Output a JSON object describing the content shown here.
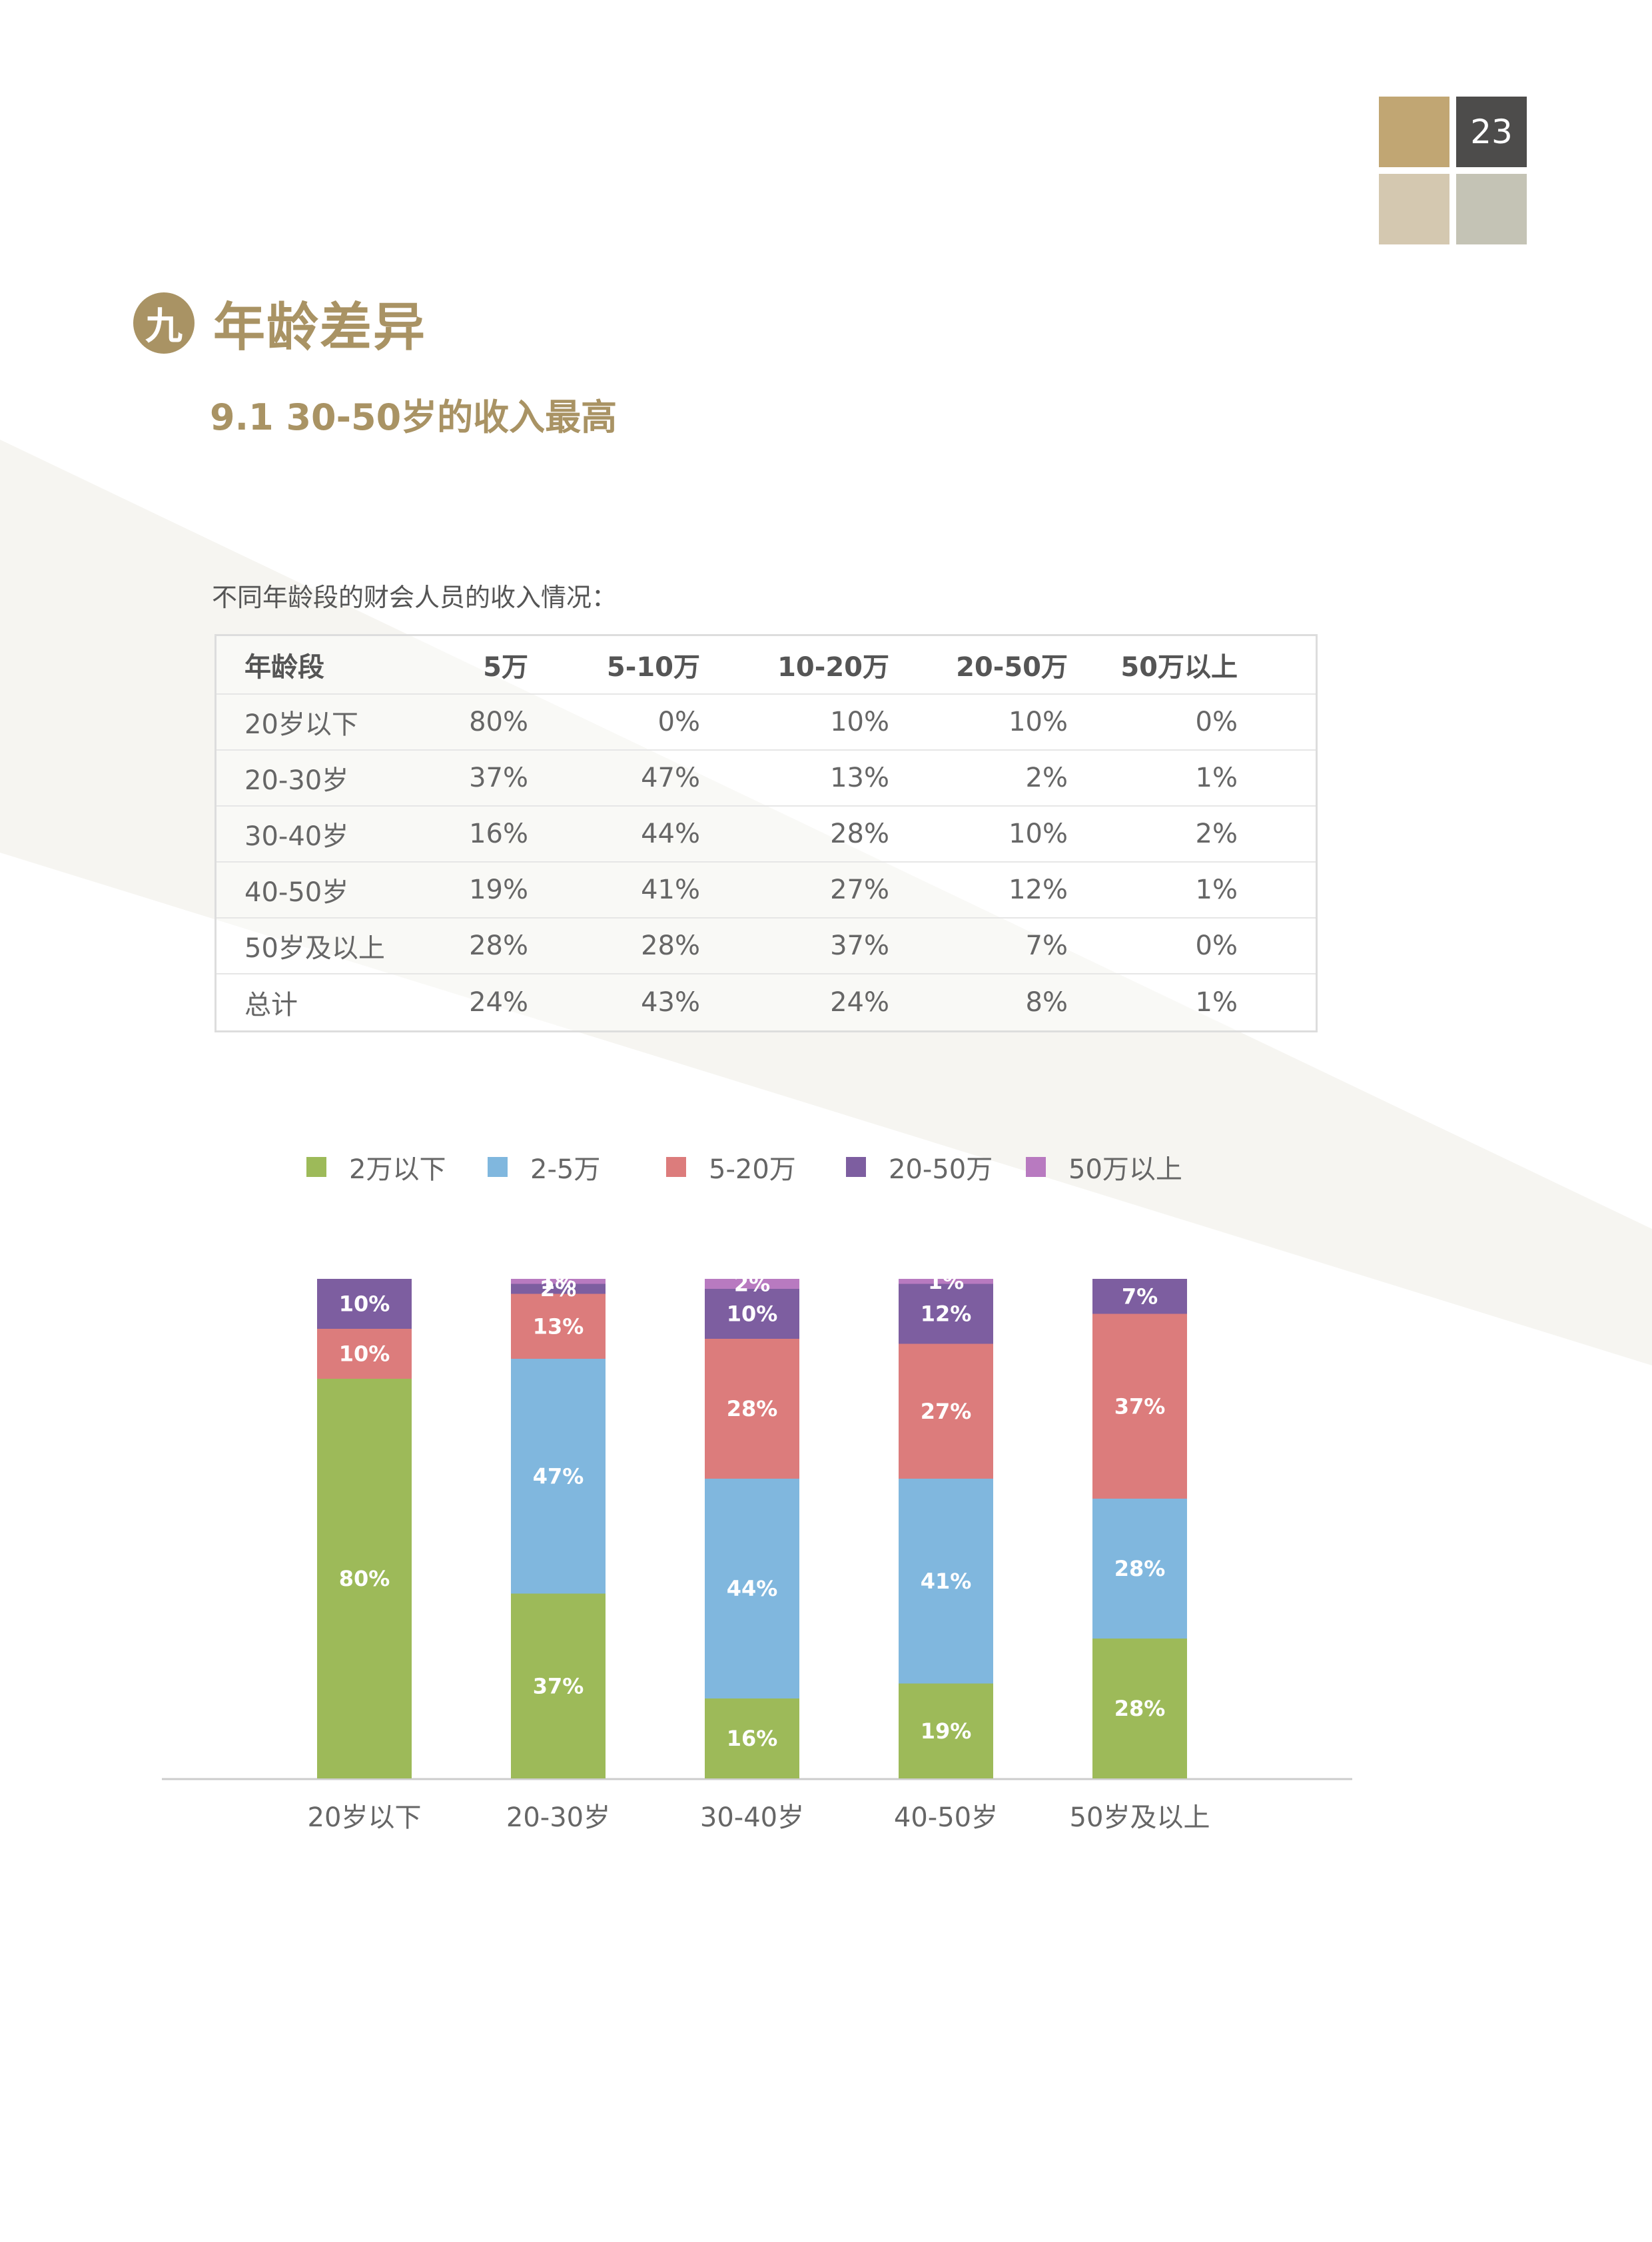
{
  "page_number": "23",
  "section": {
    "number": "九",
    "title": "年龄差异"
  },
  "subtitle": "9.1 30-50岁的收入最高",
  "table": {
    "caption": "不同年龄段的财会人员的收入情况：",
    "headers": [
      "年龄段",
      "5万",
      "5-10万",
      "10-20万",
      "20-50万",
      "50万以上"
    ],
    "rows": [
      [
        "20岁以下",
        "80%",
        "0%",
        "10%",
        "10%",
        "0%"
      ],
      [
        "20-30岁",
        "37%",
        "47%",
        "13%",
        "2%",
        "1%"
      ],
      [
        "30-40岁",
        "16%",
        "44%",
        "28%",
        "10%",
        "2%"
      ],
      [
        "40-50岁",
        "19%",
        "41%",
        "27%",
        "12%",
        "1%"
      ],
      [
        "50岁及以上",
        "28%",
        "28%",
        "37%",
        "7%",
        "0%"
      ],
      [
        "总计",
        "24%",
        "43%",
        "24%",
        "8%",
        "1%"
      ]
    ]
  },
  "chart_data": {
    "type": "bar",
    "stacked": true,
    "categories": [
      "20岁以下",
      "20-30岁",
      "30-40岁",
      "40-50岁",
      "50岁及以上"
    ],
    "legend_position": "top",
    "grid": false,
    "ylim": [
      0,
      100
    ],
    "series": [
      {
        "name": "2万以下",
        "color": "#9dba59",
        "values": [
          80,
          37,
          16,
          19,
          28
        ],
        "labels": [
          "80%",
          "37%",
          "16%",
          "19%",
          "28%"
        ]
      },
      {
        "name": "2-5万",
        "color": "#80b7de",
        "values": [
          0,
          47,
          44,
          41,
          28
        ],
        "labels": [
          "",
          "47%",
          "44%",
          "41%",
          "28%"
        ]
      },
      {
        "name": "5-20万",
        "color": "#dc7c7c",
        "values": [
          10,
          13,
          28,
          27,
          37
        ],
        "labels": [
          "10%",
          "13%",
          "28%",
          "27%",
          "37%"
        ]
      },
      {
        "name": "20-50万",
        "color": "#7d5ea0",
        "values": [
          10,
          2,
          10,
          12,
          7
        ],
        "labels": [
          "10%",
          "2%",
          "10%",
          "12%",
          "7%"
        ]
      },
      {
        "name": "50万以上",
        "color": "#b87ac0",
        "values": [
          0,
          1,
          2,
          1,
          0
        ],
        "labels": [
          "",
          "1%",
          "2%",
          "1%",
          ""
        ]
      }
    ]
  }
}
